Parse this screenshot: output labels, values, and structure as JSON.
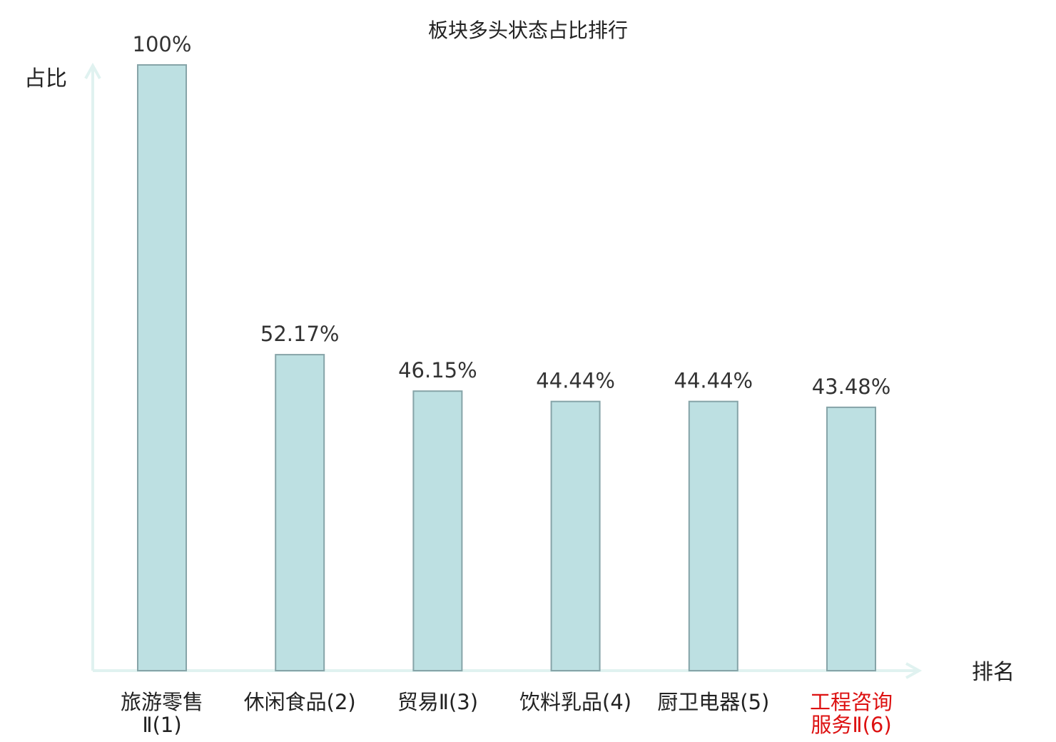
{
  "chart_data": {
    "type": "bar",
    "title": "板块多头状态占比排行",
    "ylabel": "占比",
    "xlabel": "排名",
    "ylim": [
      0,
      100
    ],
    "grid": false,
    "categories": [
      [
        "旅游零售",
        "Ⅱ(1)"
      ],
      [
        "休闲食品(2)"
      ],
      [
        "贸易Ⅱ(3)"
      ],
      [
        "饮料乳品(4)"
      ],
      [
        "厨卫电器(5)"
      ],
      [
        "工程咨询",
        "服务Ⅱ(6)"
      ]
    ],
    "values": [
      100,
      52.17,
      46.15,
      44.44,
      44.44,
      43.48
    ],
    "value_labels": [
      "100%",
      "52.17%",
      "46.15%",
      "44.44%",
      "44.44%",
      "43.48%"
    ],
    "highlight_index": 5
  },
  "colors": {
    "bar_fill": "#bde0e2",
    "bar_stroke": "#86a4a8",
    "axis": "#e0f2f0",
    "highlight_text": "#dd1111",
    "text": "#222222"
  }
}
